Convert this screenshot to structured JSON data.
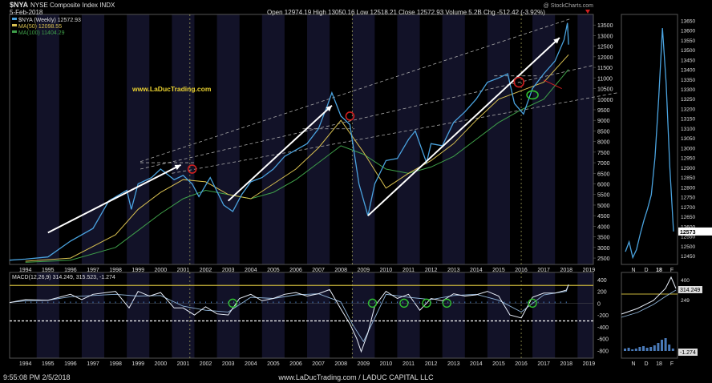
{
  "header": {
    "symbol": "$NYA",
    "name": "NYSE Composite Index",
    "exchange": "INDX",
    "date": "5-Feb-2018",
    "watermark": "@ StockCharts.com",
    "ohlc": "Open 12974.19  High 13050.16  Low 12518.21  Close 12572.93  Volume 5.2B  Chg -512.42 (-3.92%)"
  },
  "legend": {
    "price": "$NYA (Weekly) 12572.93",
    "ma50": "MA(50) 12098.55",
    "ma100": "MA(100) 11404.29"
  },
  "website": "www.LaDucTrading.com",
  "footer": {
    "timestamp": "9:55:08 PM 2/5/2018",
    "credit": "www.LaDucTrading.com / LADUC CAPITAL LLC"
  },
  "macd": {
    "label": "MACD(12,26,9) 314.249, 315.523, -1.274",
    "right_labels": [
      "314.249",
      "-1.274"
    ]
  },
  "colors": {
    "price": "#4aa3df",
    "ma50": "#d8c050",
    "ma100": "#3fa04a",
    "arrow": "#ffffff",
    "circle_red": "#d02020",
    "circle_green": "#30c030",
    "band": "#121228"
  },
  "chart_data": [
    {
      "type": "line",
      "panel": "main",
      "x_ticks": [
        "1994",
        "1995",
        "1996",
        "1997",
        "1998",
        "1999",
        "2000",
        "2001",
        "2002",
        "2003",
        "2004",
        "2005",
        "2006",
        "2007",
        "2008",
        "2009",
        "2010",
        "2011",
        "2012",
        "2013",
        "2014",
        "2015",
        "2016",
        "2017",
        "2018",
        "2019"
      ],
      "y_ticks": [
        2500,
        3000,
        3500,
        4000,
        4500,
        5000,
        5500,
        6000,
        6500,
        7000,
        7500,
        8000,
        8500,
        9000,
        9500,
        10000,
        10500,
        11000,
        11500,
        12000,
        12500,
        13000,
        13500
      ],
      "ylim": [
        2200,
        14000
      ],
      "series": [
        {
          "name": "$NYA (Weekly)",
          "x": [
            1993.3,
            1994.0,
            1995.0,
            1996.0,
            1997.0,
            1997.7,
            1998.5,
            1998.7,
            1999.0,
            1999.6,
            2000.0,
            2000.6,
            2001.0,
            2001.4,
            2001.7,
            2002.2,
            2002.8,
            2003.2,
            2003.6,
            2004.0,
            2004.5,
            2005.0,
            2005.5,
            2006.0,
            2006.5,
            2007.0,
            2007.4,
            2007.6,
            2008.0,
            2008.4,
            2008.8,
            2009.2,
            2009.5,
            2010.0,
            2010.5,
            2011.0,
            2011.3,
            2011.8,
            2012.0,
            2012.5,
            2013.0,
            2013.5,
            2014.0,
            2014.5,
            2015.0,
            2015.4,
            2015.7,
            2016.1,
            2016.5,
            2017.0,
            2017.5,
            2017.9,
            2018.05,
            2018.1
          ],
          "y": [
            2400,
            2450,
            2550,
            3300,
            3900,
            5200,
            5700,
            4800,
            6000,
            6300,
            6700,
            6200,
            6400,
            6000,
            5400,
            6300,
            5000,
            4700,
            5500,
            6100,
            6300,
            6700,
            7300,
            7600,
            7900,
            8600,
            9700,
            10300,
            9200,
            8800,
            6000,
            4500,
            6000,
            7100,
            7200,
            8100,
            8500,
            7000,
            7900,
            7800,
            8900,
            9400,
            10000,
            10800,
            11000,
            11200,
            9800,
            9300,
            10500,
            11200,
            11800,
            12800,
            13600,
            12573
          ]
        },
        {
          "name": "MA(50)",
          "x": [
            1994,
            1996,
            1998,
            1999,
            2000,
            2001,
            2002,
            2003,
            2004,
            2005,
            2006,
            2007,
            2008,
            2009,
            2010,
            2011,
            2012,
            2013,
            2014,
            2015,
            2016,
            2017,
            2018.1
          ],
          "y": [
            2350,
            2500,
            3600,
            4800,
            5600,
            6200,
            6100,
            5500,
            5300,
            6000,
            6700,
            7700,
            9000,
            7500,
            5800,
            6500,
            7100,
            7900,
            9000,
            10000,
            10400,
            10800,
            12098
          ]
        },
        {
          "name": "MA(100)",
          "x": [
            1994,
            1996,
            1998,
            1999,
            2000,
            2001,
            2002,
            2003,
            2004,
            2005,
            2006,
            2007,
            2008,
            2009,
            2010,
            2011,
            2012,
            2013,
            2014,
            2015,
            2016,
            2017,
            2018.1
          ],
          "y": [
            2300,
            2400,
            3000,
            3800,
            4600,
            5300,
            5700,
            5500,
            5300,
            5600,
            6200,
            7000,
            7800,
            7400,
            6700,
            6500,
            6800,
            7300,
            8100,
            8900,
            9500,
            10000,
            11404
          ]
        }
      ]
    },
    {
      "type": "line",
      "panel": "inset",
      "x_ticks": [
        "N",
        "D",
        "18",
        "F"
      ],
      "y_ticks": [
        12450,
        12500,
        12550,
        12600,
        12650,
        12700,
        12750,
        12800,
        12850,
        12900,
        12950,
        13000,
        13050,
        13100,
        13150,
        13200,
        13250,
        13300,
        13350,
        13400,
        13450,
        13500,
        13550,
        13600,
        13650
      ],
      "ylim": [
        12405,
        13680
      ],
      "series": [
        {
          "name": "$NYA (Weekly)",
          "x": [
            0,
            1,
            2,
            3,
            4,
            5,
            6,
            7,
            8,
            9,
            10,
            11,
            12,
            13
          ],
          "y": [
            12470,
            12520,
            12440,
            12480,
            12560,
            12630,
            12690,
            12760,
            12950,
            13250,
            13610,
            13330,
            12900,
            12573
          ]
        }
      ]
    },
    {
      "type": "line",
      "panel": "macd",
      "y_ticks": [
        400,
        200,
        0,
        -200,
        -400,
        -600,
        -800
      ],
      "ylim": [
        -930,
        520
      ],
      "reference_lines": [
        300,
        -300
      ],
      "series": [
        {
          "name": "MACD",
          "x": [
            1993.3,
            1994.0,
            1995.0,
            1996.0,
            1996.5,
            1997.0,
            1998.0,
            1998.6,
            1999.0,
            1999.5,
            2000.0,
            2000.6,
            2001.0,
            2001.5,
            2002.0,
            2002.5,
            2003.0,
            2003.5,
            2004.0,
            2004.5,
            2005.0,
            2005.5,
            2006.0,
            2006.5,
            2007.0,
            2007.5,
            2008.0,
            2008.4,
            2008.7,
            2008.9,
            2009.2,
            2009.5,
            2010.0,
            2010.5,
            2011.0,
            2011.5,
            2012.0,
            2012.5,
            2013.0,
            2013.5,
            2014.0,
            2014.5,
            2015.0,
            2015.5,
            2016.0,
            2016.5,
            2017.0,
            2017.5,
            2018.0,
            2018.1
          ],
          "y": [
            10,
            60,
            50,
            150,
            60,
            150,
            200,
            -80,
            200,
            120,
            180,
            -80,
            -80,
            -200,
            -60,
            -180,
            -200,
            80,
            150,
            40,
            80,
            150,
            180,
            120,
            160,
            230,
            -100,
            -350,
            -600,
            -820,
            -500,
            -50,
            200,
            80,
            150,
            -120,
            80,
            40,
            160,
            120,
            140,
            200,
            120,
            -200,
            -250,
            100,
            170,
            170,
            220,
            314
          ]
        },
        {
          "name": "Signal",
          "x": [
            1993.3,
            1994.0,
            1995.0,
            1996.0,
            1997.0,
            1998.0,
            1999.0,
            2000.0,
            2001.0,
            2002.0,
            2003.0,
            2004.0,
            2005.0,
            2006.0,
            2007.0,
            2008.0,
            2008.5,
            2009.0,
            2009.5,
            2010.0,
            2011.0,
            2012.0,
            2013.0,
            2014.0,
            2015.0,
            2016.0,
            2017.0,
            2018.0,
            2018.1
          ],
          "y": [
            10,
            40,
            50,
            110,
            130,
            150,
            120,
            130,
            -50,
            -120,
            -150,
            100,
            80,
            140,
            160,
            20,
            -350,
            -650,
            -250,
            150,
            100,
            60,
            130,
            150,
            50,
            -150,
            140,
            200,
            315
          ]
        }
      ]
    }
  ]
}
